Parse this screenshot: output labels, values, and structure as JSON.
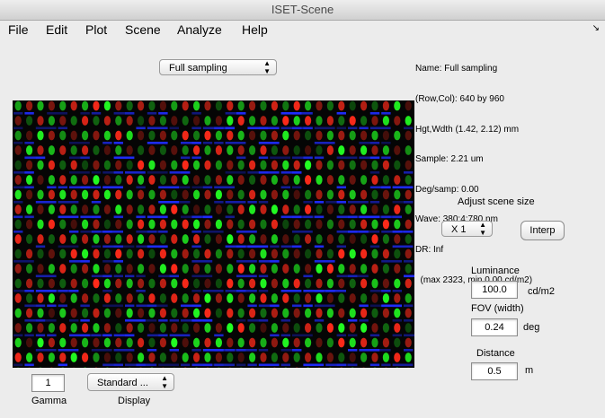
{
  "window": {
    "title": "ISET-Scene"
  },
  "menu": [
    "File",
    "Edit",
    "Plot",
    "Scene",
    "Analyze",
    "Help"
  ],
  "scene_select": {
    "value": "Full sampling"
  },
  "info": {
    "lines": [
      "Name: Full sampling",
      "(Row,Col): 640 by 960",
      "Hgt,Wdth (1.42, 2.12) mm",
      "Sample: 2.21 um",
      "Deg/samp: 0.00",
      "Wave: 380:4:780 nm",
      "DR: Inf",
      "  (max 2323, min 0.00 cd/m2)"
    ]
  },
  "controls": {
    "adjust_label": "Adjust scene size",
    "scale_value": "X 1",
    "interp_label": "Interp",
    "luminance_label": "Luminance",
    "luminance_value": "100.0",
    "luminance_unit": "cd/m2",
    "fov_label": "FOV (width)",
    "fov_value": "0.24",
    "fov_unit": "deg",
    "distance_label": "Distance",
    "distance_value": "0.5",
    "distance_unit": "m"
  },
  "bottom": {
    "gamma_value": "1",
    "gamma_label": "Gamma",
    "display_value": "Standard ...",
    "display_label": "Display"
  },
  "image_colors": {
    "red": "#ff2a1a",
    "green": "#22ff22",
    "blue": "#1f2cff",
    "background": "#050505"
  }
}
